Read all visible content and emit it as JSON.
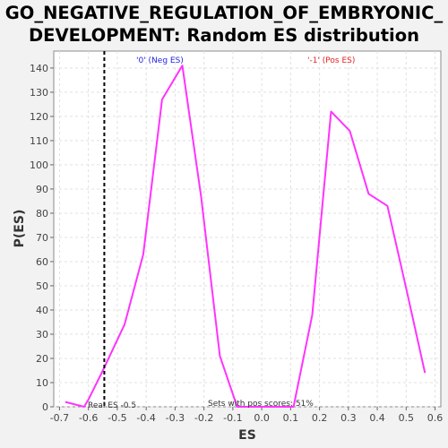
{
  "chart_data": {
    "type": "line",
    "title_lines": [
      "GO_NEGATIVE_REGULATION_OF_EMBRYONIC_",
      "DEVELOPMENT: Random ES distribution"
    ],
    "xlabel": "ES",
    "ylabel": "P(ES)",
    "xlim": [
      -0.72,
      0.62
    ],
    "ylim": [
      0,
      147
    ],
    "xticks": [
      -0.7,
      -0.6,
      -0.5,
      -0.4,
      -0.3,
      -0.2,
      -0.1,
      0.0,
      0.1,
      0.2,
      0.3,
      0.4,
      0.5,
      0.6
    ],
    "xtick_labels": [
      "-0.7",
      "-0.6",
      "-0.5",
      "-0.4",
      "-0.3",
      "-0.2",
      "-0.1",
      "0.0",
      "0.1",
      "0.2",
      "0.3",
      "0.4",
      "0.5",
      "0.6"
    ],
    "yticks": [
      0,
      10,
      20,
      30,
      40,
      50,
      60,
      70,
      80,
      90,
      100,
      110,
      120,
      130,
      140
    ],
    "ytick_labels": [
      "0",
      "10",
      "20",
      "30",
      "40",
      "50",
      "60",
      "70",
      "80",
      "90",
      "100",
      "110",
      "120",
      "130",
      "140"
    ],
    "grid": true,
    "series": [
      {
        "color": "#ff33ff",
        "x": [
          -0.68,
          -0.615,
          -0.6,
          -0.55,
          -0.475,
          -0.41,
          -0.345,
          -0.275,
          -0.21,
          -0.145,
          -0.085,
          -0.02,
          0.045,
          0.11,
          0.175,
          0.24,
          0.305,
          0.37,
          0.435,
          0.5,
          0.565
        ],
        "y": [
          2,
          0,
          3,
          15,
          34,
          63,
          127,
          141,
          87,
          21,
          0,
          0,
          0,
          0,
          38,
          122,
          114,
          88,
          83,
          49,
          14
        ]
      }
    ],
    "real_es": -0.545,
    "annotations": {
      "neg_label": "'0' (Neg ES)",
      "pos_label": "'-1' (Pos ES)",
      "real_es_label": "Real ES -0.5",
      "pos_scores_label": "Sets with pos scores: 51%"
    },
    "colors": {
      "neg": "#1f1fe6",
      "pos": "#e61f1f",
      "grid": "#e0e0e0"
    }
  }
}
